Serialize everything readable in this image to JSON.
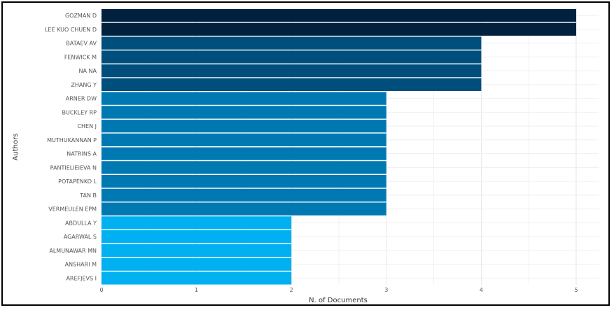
{
  "chart_data": {
    "type": "bar",
    "orientation": "horizontal",
    "title": "",
    "xlabel": "N. of Documents",
    "ylabel": "Authors",
    "xlim": [
      0,
      5.25
    ],
    "xticks": [
      0,
      1,
      2,
      3,
      4,
      5
    ],
    "grid": true,
    "legend": "none",
    "categories": [
      "GOZMAN D",
      "LEE KUO CHUEN D",
      "BATAEV AV",
      "FENWICK M",
      "NA NA",
      "ZHANG Y",
      "ARNER DW",
      "BUCKLEY RP",
      "CHEN J",
      "MUTHUKANNAN P",
      "NATRINS A",
      "PANTIELIEIEVA N",
      "POTAPENKO L",
      "TAN B",
      "VERMEULEN EPM",
      "ABDULLA Y",
      "AGARWAL S",
      "ALMUNAWAR MN",
      "ANSHARI M",
      "AREFJEVS I"
    ],
    "values": [
      5,
      5,
      4,
      4,
      4,
      4,
      3,
      3,
      3,
      3,
      3,
      3,
      3,
      3,
      3,
      2,
      2,
      2,
      2,
      2
    ],
    "value_colors": {
      "5": "#01213f",
      "4": "#004e7c",
      "3": "#0079b3",
      "2": "#00b0f0"
    }
  }
}
